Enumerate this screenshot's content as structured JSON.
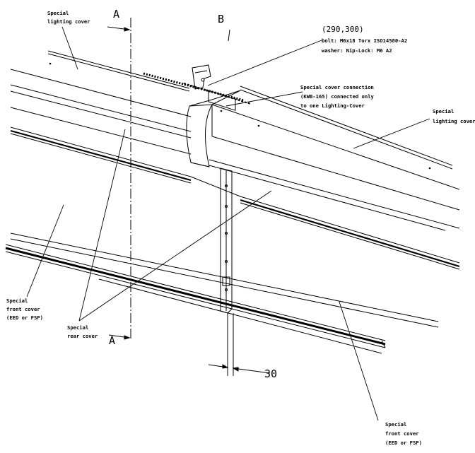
{
  "drawing": {
    "section_marks": {
      "a_top": "A",
      "a_bottom": "A",
      "b_top": "B"
    },
    "coordinate": "(290,300)",
    "bolt_spec": {
      "line1": "bolt: M6x18 Torx ISO14580-A2",
      "line2": "washer: Nip-Lock: M6  A2"
    },
    "labels": {
      "lighting_cover_left": [
        "Special",
        "lighting cover"
      ],
      "lighting_cover_right": [
        "Special",
        "lighting cover"
      ],
      "cover_connection": [
        "Special cover connection",
        "(KWB-165) connected only",
        "to one Lighting-Cover"
      ],
      "front_cover_left": [
        "Special",
        "front cover",
        "(EED or FSP)"
      ],
      "rear_cover": [
        "Special",
        "rear cover"
      ],
      "front_cover_right": [
        "Special",
        "front cover",
        "(EED or FSP)"
      ]
    },
    "dimension": "30"
  }
}
